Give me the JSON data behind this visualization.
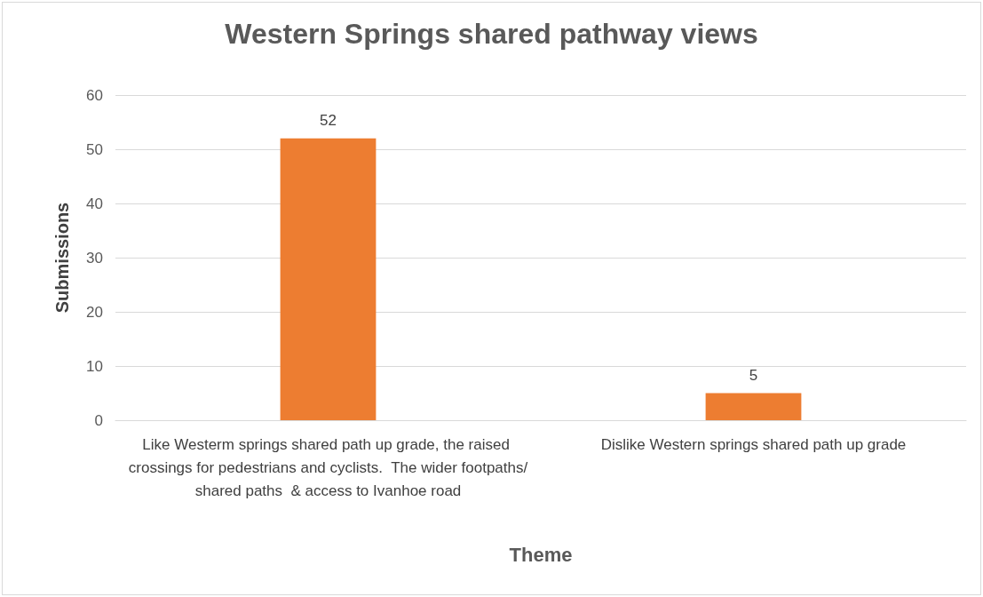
{
  "chart_data": {
    "type": "bar",
    "title": "Western Springs shared pathway views",
    "xlabel": "Theme",
    "ylabel": "Submissions",
    "categories": [
      "Like Westerm springs shared path up grade, the raised crossings for pedestrians and cyclists.  The wider footpaths/shared paths  & access to Ivanhoe road",
      "Dislike Western springs shared path up grade"
    ],
    "values": [
      52,
      5
    ],
    "color": "#ed7d31",
    "ylim": [
      0,
      60
    ],
    "yticks": [
      0,
      10,
      20,
      30,
      40,
      50,
      60
    ],
    "grid": "y",
    "data_labels": true
  }
}
